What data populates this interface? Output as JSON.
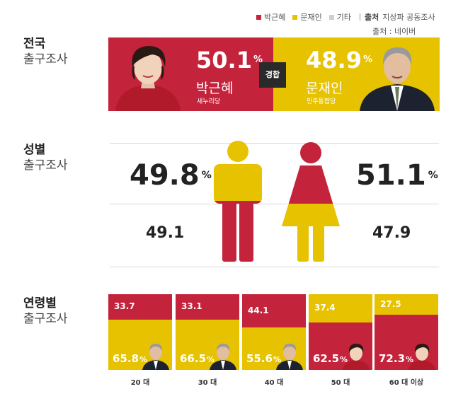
{
  "legend": {
    "items": [
      {
        "label": "박근혜",
        "color": "#c4233c"
      },
      {
        "label": "문재인",
        "color": "#e6c200"
      },
      {
        "label": "기타",
        "color": "#cfcfcf"
      }
    ],
    "source_label": "출처",
    "source_value": "지상파 공동조사",
    "source2": "출처 : 네이버"
  },
  "national": {
    "title_line1": "전국",
    "title_line2": "출구조사",
    "park_pct": "50.1",
    "park_name": "박근혜",
    "park_party": "새누리당",
    "moon_pct": "48.9",
    "moon_name": "문재인",
    "moon_party": "민주통합당",
    "badge": "경합",
    "pct_sign": "%"
  },
  "gender": {
    "title_line1": "성별",
    "title_line2": "출구조사",
    "male_top": "49.8",
    "male_bottom": "49.1",
    "female_top": "51.1",
    "female_bottom": "47.9",
    "pct_sign": "%"
  },
  "age": {
    "title_line1": "연령별",
    "title_line2": "출구조사"
  },
  "chart_data": {
    "type": "bar",
    "categories": [
      "20 대",
      "30 대",
      "40 대",
      "50 대",
      "60 대 이상"
    ],
    "series": [
      {
        "name": "박근혜",
        "color": "#c4233c",
        "values": [
          33.7,
          33.1,
          44.1,
          62.5,
          72.3
        ]
      },
      {
        "name": "문재인",
        "color": "#e6c200",
        "values": [
          65.8,
          66.5,
          55.6,
          37.4,
          27.5
        ]
      }
    ],
    "leader_values": [
      "65.8",
      "66.5",
      "55.6",
      "62.5",
      "72.3"
    ],
    "loser_values": [
      "33.7",
      "33.1",
      "44.1",
      "37.4",
      "27.5"
    ],
    "leader": [
      "moon",
      "moon",
      "moon",
      "park",
      "park"
    ],
    "ylim": [
      0,
      100
    ]
  }
}
